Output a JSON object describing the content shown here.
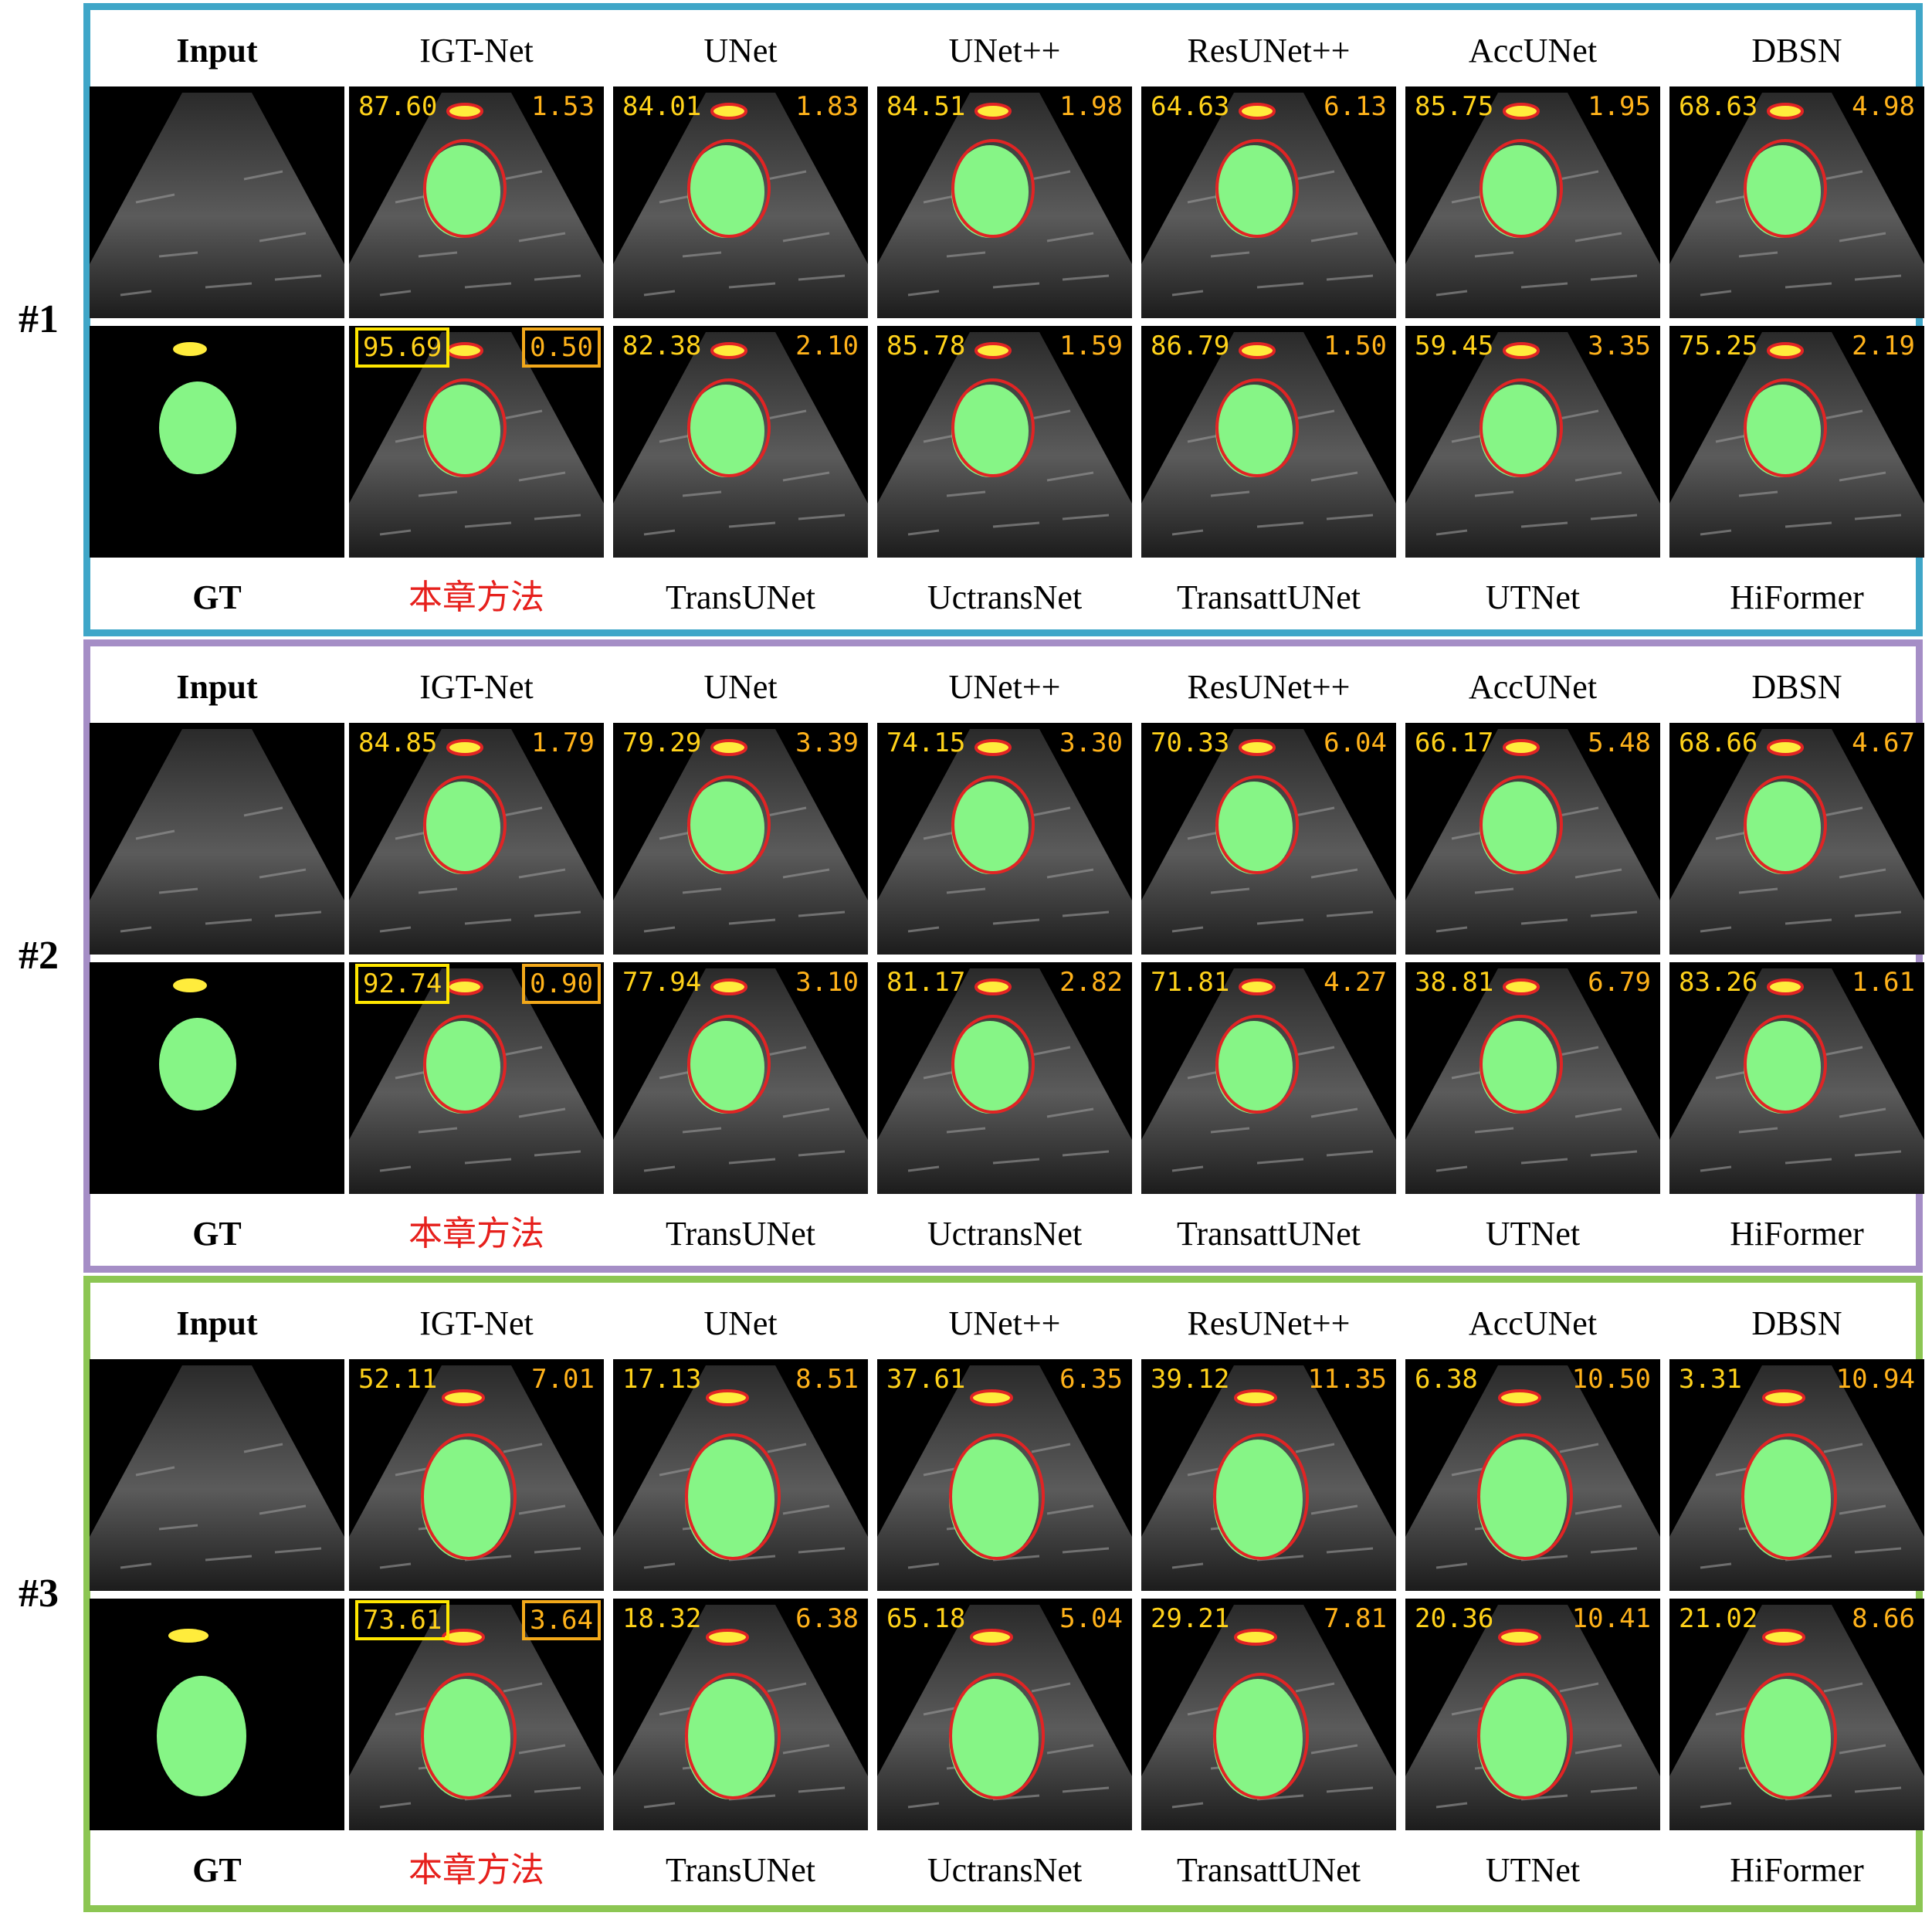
{
  "colors": {
    "group_1_border": "#3fa6c8",
    "group_2_border": "#a58ec6",
    "group_3_border": "#8cc653",
    "ground_truth_large": "#86f586",
    "ground_truth_small": "#ffec3c",
    "prediction_contour": "#e12424",
    "dice_text": "#ffd21a",
    "hd_text": "#ffb21a",
    "ours_label": "#e6201c"
  },
  "groups": [
    {
      "label": "#1",
      "row1": {
        "headers": [
          "Input",
          "IGT-Net",
          "UNet",
          "UNet++",
          "ResUNet++",
          "AccUNet",
          "DBSN"
        ],
        "metrics": [
          null,
          [
            "87.60",
            "1.53"
          ],
          [
            "84.01",
            "1.83"
          ],
          [
            "84.51",
            "1.98"
          ],
          [
            "64.63",
            "6.13"
          ],
          [
            "85.75",
            "1.95"
          ],
          [
            "68.63",
            "4.98"
          ]
        ]
      },
      "row2": {
        "footers": [
          "GT",
          "本章方法",
          "TransUNet",
          "UctransNet",
          "TransattUNet",
          "UTNet",
          "HiFormer"
        ],
        "metrics": [
          null,
          [
            "95.69",
            "0.50"
          ],
          [
            "82.38",
            "2.10"
          ],
          [
            "85.78",
            "1.59"
          ],
          [
            "86.79",
            "1.50"
          ],
          [
            "59.45",
            "3.35"
          ],
          [
            "75.25",
            "2.19"
          ]
        ]
      }
    },
    {
      "label": "#2",
      "row1": {
        "headers": [
          "Input",
          "IGT-Net",
          "UNet",
          "UNet++",
          "ResUNet++",
          "AccUNet",
          "DBSN"
        ],
        "metrics": [
          null,
          [
            "84.85",
            "1.79"
          ],
          [
            "79.29",
            "3.39"
          ],
          [
            "74.15",
            "3.30"
          ],
          [
            "70.33",
            "6.04"
          ],
          [
            "66.17",
            "5.48"
          ],
          [
            "68.66",
            "4.67"
          ]
        ]
      },
      "row2": {
        "footers": [
          "GT",
          "本章方法",
          "TransUNet",
          "UctransNet",
          "TransattUNet",
          "UTNet",
          "HiFormer"
        ],
        "metrics": [
          null,
          [
            "92.74",
            "0.90"
          ],
          [
            "77.94",
            "3.10"
          ],
          [
            "81.17",
            "2.82"
          ],
          [
            "71.81",
            "4.27"
          ],
          [
            "38.81",
            "6.79"
          ],
          [
            "83.26",
            "1.61"
          ]
        ]
      }
    },
    {
      "label": "#3",
      "row1": {
        "headers": [
          "Input",
          "IGT-Net",
          "UNet",
          "UNet++",
          "ResUNet++",
          "AccUNet",
          "DBSN"
        ],
        "metrics": [
          null,
          [
            "52.11",
            "7.01"
          ],
          [
            "17.13",
            "8.51"
          ],
          [
            "37.61",
            "6.35"
          ],
          [
            "39.12",
            "11.35"
          ],
          [
            "6.38",
            "10.50"
          ],
          [
            "3.31",
            "10.94"
          ]
        ]
      },
      "row2": {
        "footers": [
          "GT",
          "本章方法",
          "TransUNet",
          "UctransNet",
          "TransattUNet",
          "UTNet",
          "HiFormer"
        ],
        "metrics": [
          null,
          [
            "73.61",
            "3.64"
          ],
          [
            "18.32",
            "6.38"
          ],
          [
            "65.18",
            "5.04"
          ],
          [
            "29.21",
            "7.81"
          ],
          [
            "20.36",
            "10.41"
          ],
          [
            "21.02",
            "8.66"
          ]
        ]
      }
    }
  ]
}
